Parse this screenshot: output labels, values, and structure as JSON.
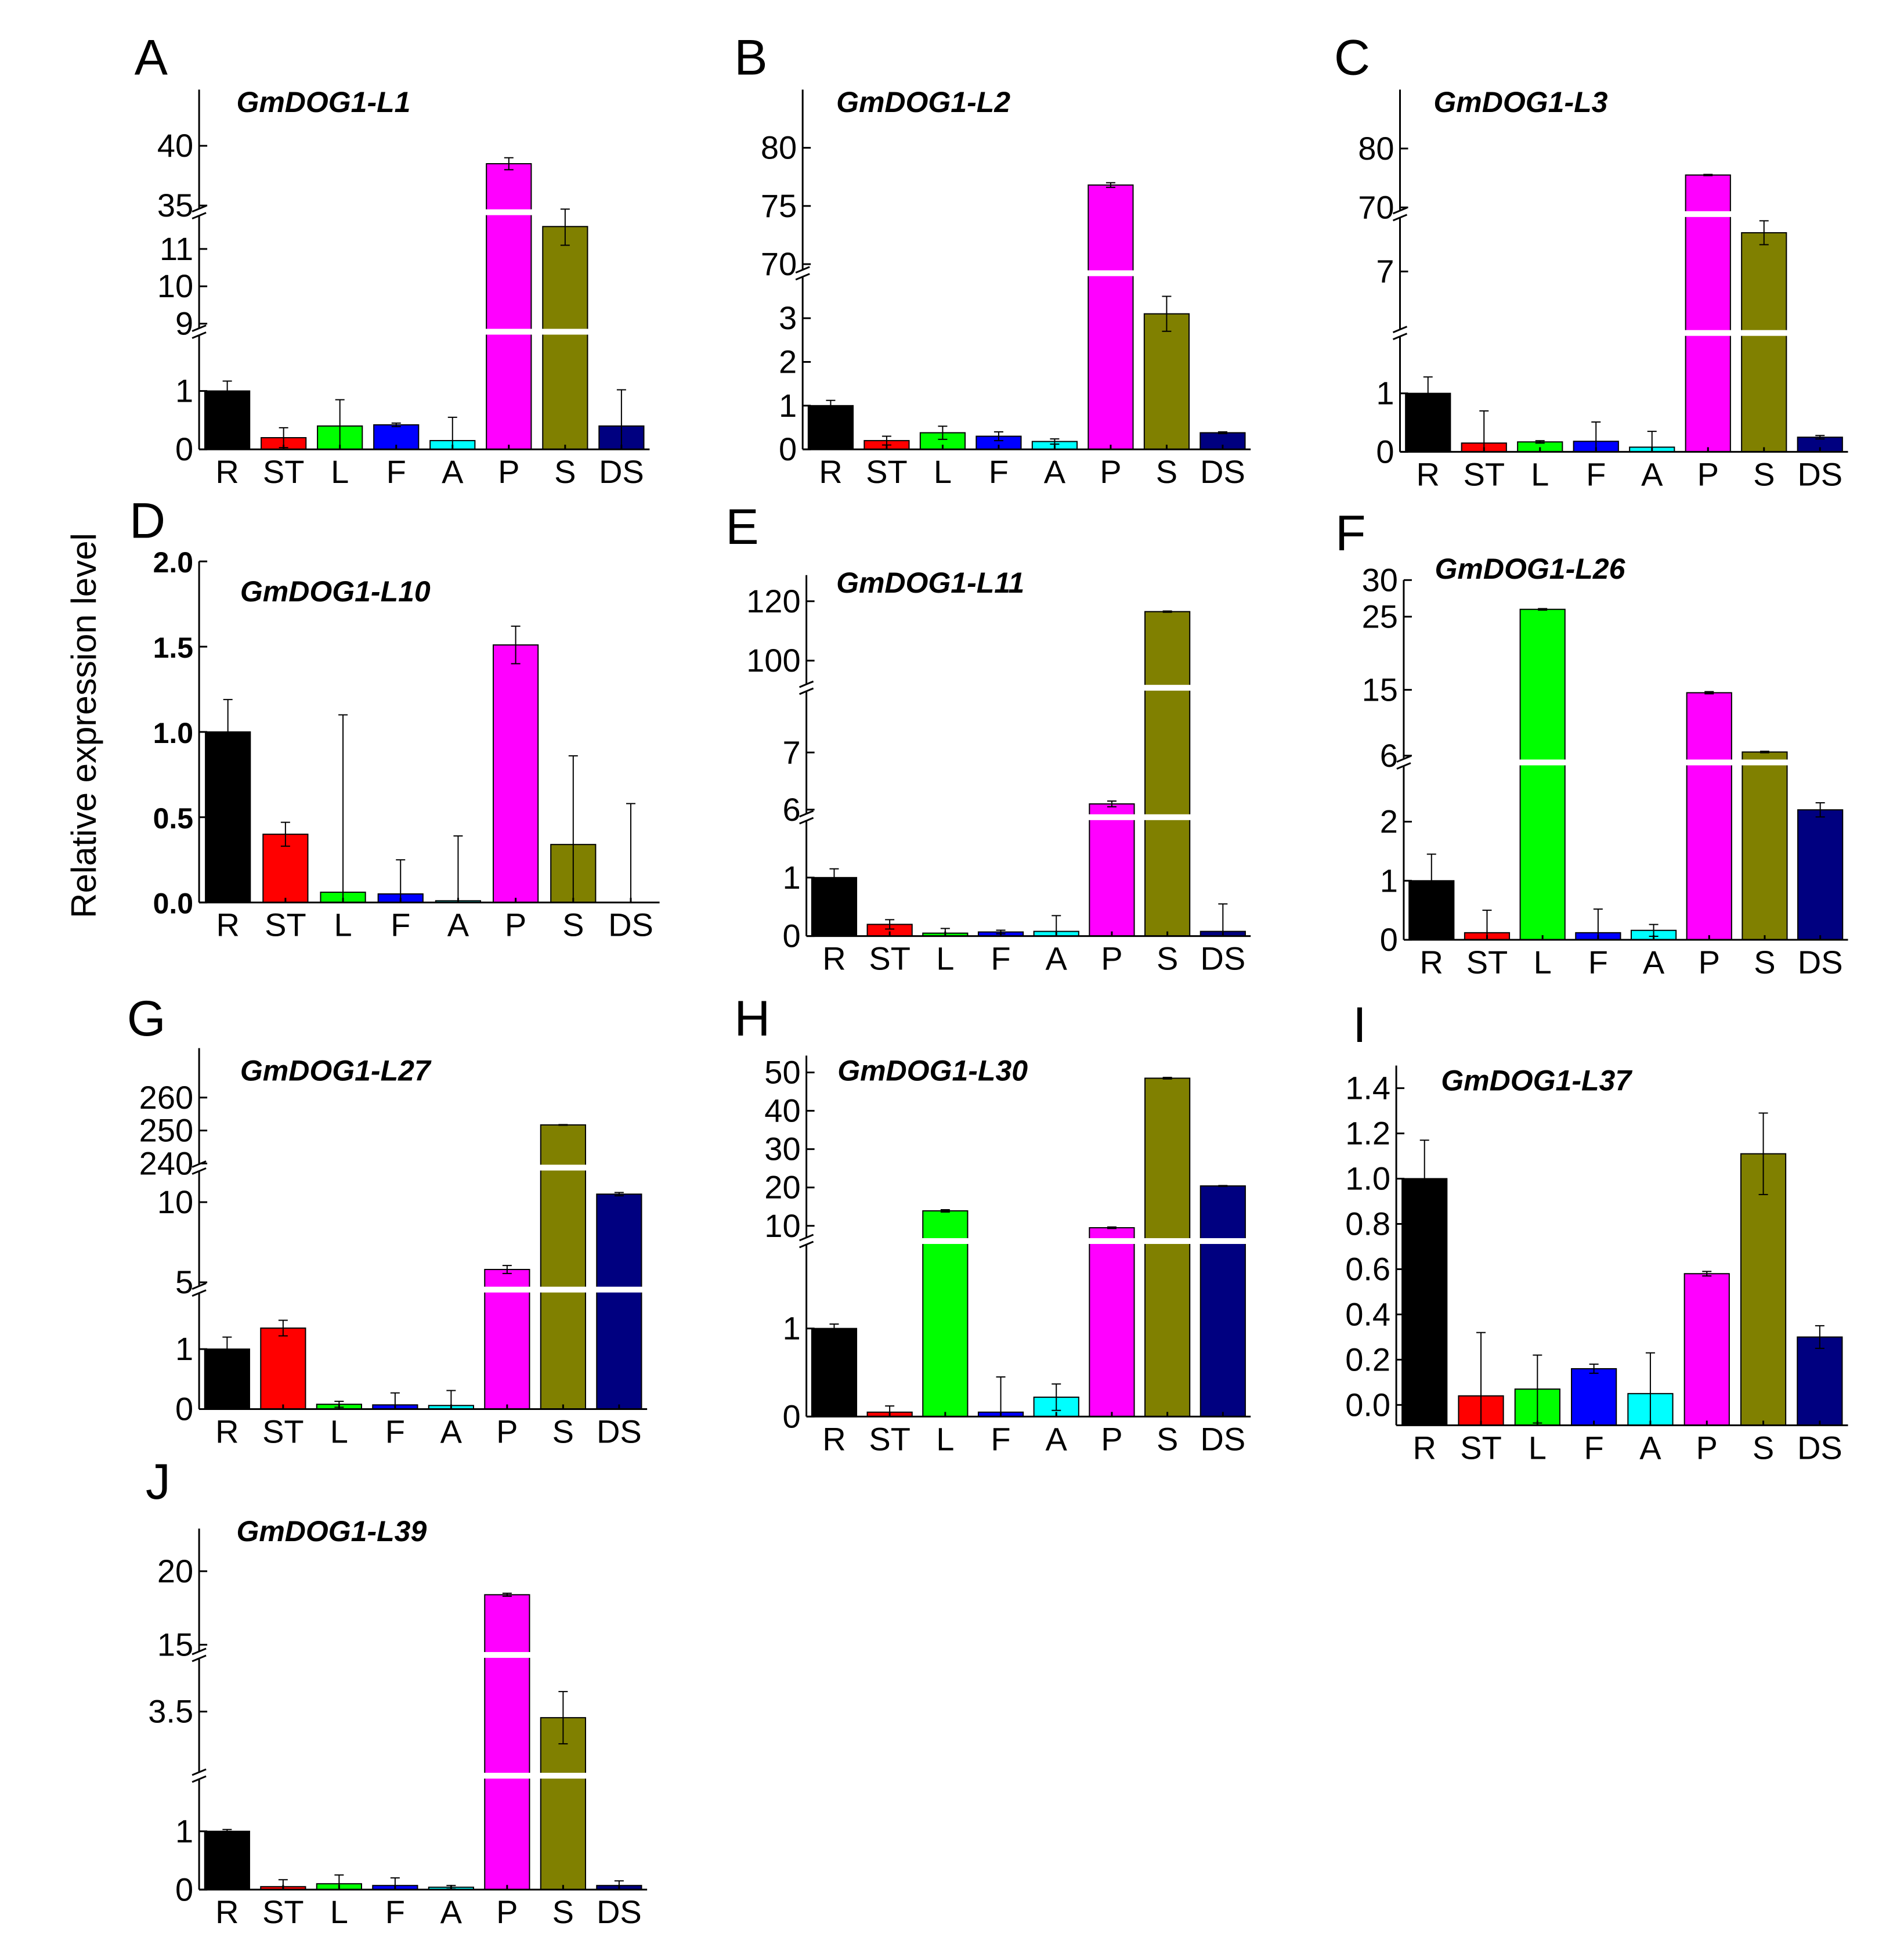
{
  "y_axis_label": "Relative expression level",
  "tissues": [
    "R",
    "ST",
    "L",
    "F",
    "A",
    "P",
    "S",
    "DS"
  ],
  "colors": [
    "#000000",
    "#ff0000",
    "#00ff00",
    "#0000ff",
    "#00ffff",
    "#ff00ff",
    "#808000",
    "#000080"
  ],
  "chart_data": [
    {
      "type": "bar",
      "panel": "A",
      "title": "GmDOG1-L1",
      "y_segments": [
        [
          0,
          1.94
        ],
        [
          8.9,
          11.9
        ],
        [
          34.7,
          44.7
        ]
      ],
      "yticks": [
        [
          "0",
          "1"
        ],
        [
          "9",
          "10",
          "11"
        ],
        [
          "35",
          "40"
        ]
      ],
      "values": [
        1.0,
        0.2,
        0.4,
        0.42,
        0.15,
        38.5,
        11.6,
        0.4
      ],
      "errors": [
        0.17,
        0.17,
        0.45,
        0.03,
        0.4,
        0.5,
        0.5,
        0.62
      ]
    },
    {
      "type": "bar",
      "panel": "B",
      "title": "GmDOG1-L2",
      "y_segments": [
        [
          0,
          3.9
        ],
        [
          69.7,
          85
        ]
      ],
      "yticks": [
        [
          "0",
          "1",
          "2",
          "3"
        ],
        [
          "70",
          "75",
          "80"
        ]
      ],
      "values": [
        1.0,
        0.2,
        0.38,
        0.3,
        0.18,
        76.8,
        3.1,
        0.38
      ],
      "errors": [
        0.12,
        0.1,
        0.15,
        0.1,
        0.06,
        0.2,
        0.4,
        0.02
      ]
    },
    {
      "type": "bar",
      "panel": "C",
      "title": "GmDOG1-L3",
      "y_segments": [
        [
          0,
          2
        ],
        [
          6,
          7.9
        ],
        [
          69.5,
          90
        ]
      ],
      "yticks": [
        [
          "0",
          "1"
        ],
        [
          "7"
        ],
        [
          "70",
          "80"
        ]
      ],
      "values": [
        1.0,
        0.15,
        0.17,
        0.18,
        0.08,
        75.5,
        7.65,
        0.25
      ],
      "errors": [
        0.28,
        0.55,
        0.02,
        0.33,
        0.27,
        0.1,
        0.2,
        0.03
      ]
    },
    {
      "type": "bar",
      "panel": "D",
      "title": "GmDOG1-L10",
      "y_segments": [
        [
          0,
          2.0
        ]
      ],
      "yticks": [
        [
          "0.0",
          "0.5",
          "1.0",
          "1.5",
          "2.0"
        ]
      ],
      "values": [
        1.0,
        0.4,
        0.06,
        0.05,
        0.01,
        1.51,
        0.34,
        0.0
      ],
      "errors": [
        0.19,
        0.07,
        1.04,
        0.2,
        0.38,
        0.11,
        0.52,
        0.58
      ]
    },
    {
      "type": "bar",
      "panel": "E",
      "title": "GmDOG1-L11",
      "y_segments": [
        [
          0,
          2
        ],
        [
          5.9,
          8.1
        ],
        [
          91.5,
          128.8
        ]
      ],
      "yticks": [
        [
          "0",
          "1"
        ],
        [
          "6",
          "7"
        ],
        [
          "100",
          "120"
        ]
      ],
      "values": [
        1.0,
        0.2,
        0.05,
        0.07,
        0.08,
        6.1,
        116.5,
        0.08
      ],
      "errors": [
        0.15,
        0.08,
        0.08,
        0.03,
        0.27,
        0.05,
        0.2,
        0.47
      ]
    },
    {
      "type": "bar",
      "panel": "F",
      "title": "GmDOG1-L26",
      "y_segments": [
        [
          0,
          2.95
        ],
        [
          5.5,
          30
        ]
      ],
      "yticks": [
        [
          "0",
          "1",
          "2"
        ],
        [
          "6",
          "15",
          "25",
          "30"
        ]
      ],
      "values": [
        1.0,
        0.12,
        26.0,
        0.12,
        0.16,
        14.6,
        6.5,
        2.2
      ],
      "errors": [
        0.45,
        0.38,
        0.1,
        0.4,
        0.1,
        0.15,
        0.1,
        0.12
      ]
    },
    {
      "type": "bar",
      "panel": "G",
      "title": "GmDOG1-L27",
      "y_segments": [
        [
          0,
          1.95
        ],
        [
          4.7,
          12
        ],
        [
          239.5,
          275
        ]
      ],
      "yticks": [
        [
          "0",
          "1"
        ],
        [
          "5",
          "10"
        ],
        [
          "240",
          "250",
          "260"
        ]
      ],
      "values": [
        1.0,
        1.35,
        0.08,
        0.07,
        0.06,
        5.8,
        251.7,
        10.5
      ],
      "errors": [
        0.2,
        0.13,
        0.05,
        0.2,
        0.25,
        0.25,
        0.1,
        0.1
      ]
    },
    {
      "type": "bar",
      "panel": "H",
      "title": "GmDOG1-L30",
      "y_segments": [
        [
          0,
          1.95
        ],
        [
          7,
          54.4
        ]
      ],
      "yticks": [
        [
          "0",
          "1"
        ],
        [
          "10",
          "20",
          "30",
          "40",
          "50"
        ]
      ],
      "values": [
        1.0,
        0.05,
        13.9,
        0.05,
        0.22,
        9.5,
        48.5,
        20.4
      ],
      "errors": [
        0.05,
        0.07,
        0.3,
        0.4,
        0.15,
        0.2,
        0.2,
        0.1
      ]
    },
    {
      "type": "bar",
      "panel": "I",
      "title": "GmDOG1-L37",
      "y_segments": [
        [
          -0.09,
          1.5
        ]
      ],
      "yticks": [
        [
          "0.0",
          "0.2",
          "0.4",
          "0.6",
          "0.8",
          "1.0",
          "1.2",
          "1.4"
        ]
      ],
      "values": [
        1.0,
        0.04,
        0.07,
        0.16,
        0.05,
        0.58,
        1.11,
        0.3
      ],
      "errors": [
        0.17,
        0.28,
        0.15,
        0.02,
        0.18,
        0.01,
        0.18,
        0.05
      ]
    },
    {
      "type": "bar",
      "panel": "J",
      "title": "GmDOG1-L39",
      "y_segments": [
        [
          0,
          1.9
        ],
        [
          2.8,
          4.1
        ],
        [
          14.6,
          22.9
        ]
      ],
      "yticks": [
        [
          "0",
          "1"
        ],
        [
          "3.5"
        ],
        [
          "15",
          "20"
        ]
      ],
      "values": [
        1.0,
        0.05,
        0.1,
        0.07,
        0.04,
        18.4,
        3.43,
        0.07
      ],
      "errors": [
        0.03,
        0.12,
        0.15,
        0.13,
        0.03,
        0.1,
        0.3,
        0.08
      ]
    }
  ]
}
